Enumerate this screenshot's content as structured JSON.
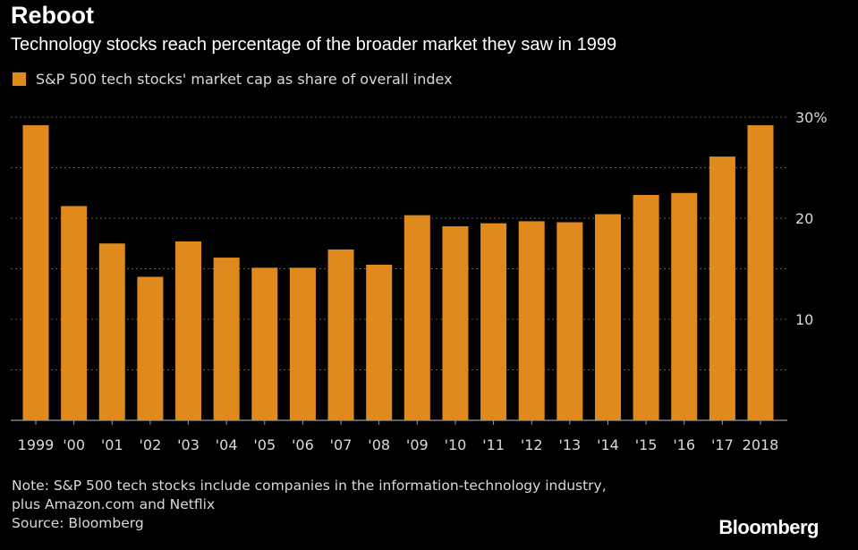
{
  "colors": {
    "bar": "#e08a1e",
    "background": "#000000",
    "grid": "#5a5a5a",
    "text": "#d9d9d9"
  },
  "chart_data": {
    "type": "bar",
    "title": "Reboot",
    "subtitle": "Technology stocks reach percentage of the broader market they saw in 1999",
    "categories": [
      "1999",
      "'00",
      "'01",
      "'02",
      "'03",
      "'04",
      "'05",
      "'06",
      "'07",
      "'08",
      "'09",
      "'10",
      "'11",
      "'12",
      "'13",
      "'14",
      "'15",
      "'16",
      "'17",
      "2018"
    ],
    "series": [
      {
        "name": "S&P 500 tech stocks' market cap as share of overall index",
        "values": [
          29.2,
          21.2,
          17.5,
          14.2,
          17.7,
          16.1,
          15.1,
          15.1,
          16.9,
          15.4,
          20.3,
          19.2,
          19.5,
          19.7,
          19.6,
          20.4,
          22.3,
          22.5,
          26.1,
          29.2
        ]
      }
    ],
    "ylim": [
      0,
      30
    ],
    "yticks": [
      {
        "value": 10,
        "label": "10"
      },
      {
        "value": 20,
        "label": "20"
      },
      {
        "value": 30,
        "label": "30%"
      }
    ],
    "gridlines": [
      5,
      10,
      15,
      20,
      25,
      30
    ],
    "grid": true,
    "legend": "top-left",
    "y_axis_side": "right"
  },
  "footer": {
    "note_line1": "Note: S&P 500 tech stocks include companies in the information-technology industry,",
    "note_line2": "plus Amazon.com and Netflix",
    "source": "Source: Bloomberg",
    "brand": "Bloomberg"
  }
}
